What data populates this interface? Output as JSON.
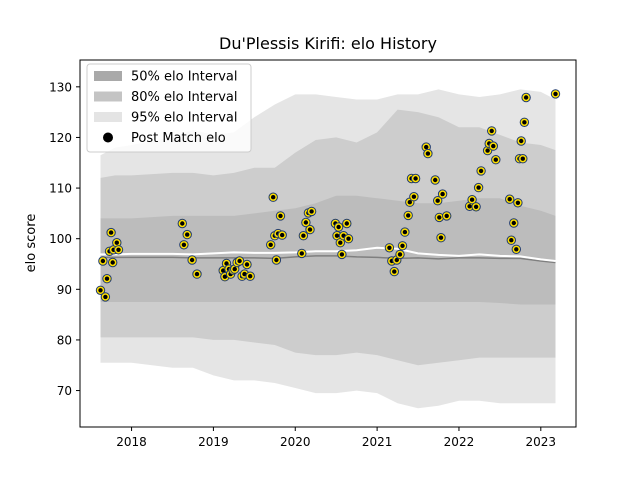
{
  "chart_data": {
    "type": "scatter",
    "title": "Du'Plessis Kirifi: elo History",
    "xlabel": "",
    "ylabel": "elo score",
    "xlim": [
      2017.37,
      2023.43
    ],
    "ylim": [
      62.8,
      135.3
    ],
    "x_ticks": [
      {
        "label": "2018",
        "value": 2018
      },
      {
        "label": "2019",
        "value": 2019
      },
      {
        "label": "2020",
        "value": 2020
      },
      {
        "label": "2021",
        "value": 2021
      },
      {
        "label": "2022",
        "value": 2022
      },
      {
        "label": "2023",
        "value": 2023
      }
    ],
    "y_ticks": [
      70,
      80,
      90,
      100,
      110,
      120,
      130
    ],
    "legend": {
      "location": "upper left",
      "items": [
        {
          "label": "50% elo Interval",
          "kind": "patch",
          "color": "#a9a9a9"
        },
        {
          "label": "80% elo Interval",
          "kind": "patch",
          "color": "#c4c4c4"
        },
        {
          "label": "95% elo Interval",
          "kind": "patch",
          "color": "#e4e4e4"
        },
        {
          "label": "Post Match elo",
          "kind": "marker",
          "color": "#000000"
        }
      ]
    },
    "colors": {
      "band_95": "#e5e5e5",
      "band_80": "#cdcdcd",
      "band_50": "#bcbcbc",
      "median_line": "#7f7f7f",
      "mean_line": "#ffffff",
      "point_fill": "#ffe000",
      "point_edge": "#1f3a6e",
      "point_center": "#000000"
    },
    "bands": {
      "x": [
        2017.62,
        2017.8,
        2018.0,
        2018.5,
        2018.75,
        2019.0,
        2019.25,
        2019.5,
        2019.75,
        2020.0,
        2020.25,
        2020.5,
        2020.75,
        2021.0,
        2021.25,
        2021.5,
        2021.75,
        2022.0,
        2022.25,
        2022.5,
        2022.75,
        2023.0,
        2023.18
      ],
      "p95_upper": [
        116.5,
        118,
        118.5,
        120,
        121.5,
        120.5,
        121,
        124,
        126.5,
        128.5,
        128.5,
        128,
        127.5,
        127.5,
        128.5,
        128.5,
        129.5,
        128.5,
        128,
        128.5,
        129.5,
        129,
        127.5
      ],
      "p80_upper": [
        112,
        112.5,
        112.5,
        113,
        113,
        112.5,
        113,
        114,
        114,
        117,
        119.5,
        120,
        119,
        121,
        125.5,
        125,
        124,
        122,
        122,
        120.5,
        119,
        118.5,
        117.5
      ],
      "p50_upper": [
        104,
        104,
        104,
        104.5,
        104.5,
        104.5,
        104.5,
        105,
        105.5,
        106,
        107,
        108.5,
        108.5,
        108,
        107.5,
        107,
        107,
        107.5,
        108,
        108,
        106.5,
        105.5,
        104.5
      ],
      "median": [
        96.3,
        96.3,
        96.3,
        96.3,
        96.2,
        96.2,
        96.2,
        96.2,
        96.1,
        96.4,
        96.6,
        96.6,
        96.4,
        96.3,
        96.1,
        96.2,
        96.0,
        96.2,
        96.2,
        96.1,
        96.1,
        95.6,
        95.3
      ],
      "mean": [
        96.9,
        96.9,
        97.0,
        97.0,
        96.9,
        97.1,
        97.3,
        97.2,
        97.2,
        97.3,
        97.5,
        97.5,
        97.7,
        98.2,
        98.0,
        97.1,
        96.8,
        96.6,
        96.9,
        96.6,
        96.5,
        95.9,
        95.6
      ],
      "p50_lower": [
        87.5,
        87.5,
        87.5,
        87.5,
        87.5,
        87.5,
        87.5,
        87.5,
        87.5,
        87.5,
        87.5,
        87.5,
        87.5,
        87.5,
        87.5,
        87.5,
        87.5,
        87.5,
        87.5,
        87.3,
        87.0,
        87.0,
        87.0
      ],
      "p80_lower": [
        80.5,
        80.5,
        80.5,
        80.5,
        80.5,
        80,
        80,
        79.5,
        79,
        77.5,
        77,
        77,
        77.5,
        77,
        76,
        75,
        75.5,
        76,
        76.5,
        76.5,
        76.5,
        76.5,
        76.5
      ],
      "p95_lower": [
        75.5,
        75.5,
        75.5,
        74.5,
        74.5,
        73,
        72,
        72,
        71.5,
        70.5,
        69.5,
        69.5,
        70,
        69.5,
        67.5,
        66.5,
        67,
        68,
        68,
        67.5,
        67.5,
        67.5,
        67.5
      ]
    },
    "points": [
      [
        2017.62,
        89.8
      ],
      [
        2017.65,
        95.6
      ],
      [
        2017.68,
        88.5
      ],
      [
        2017.7,
        92.1
      ],
      [
        2017.73,
        97.5
      ],
      [
        2017.75,
        101.2
      ],
      [
        2017.77,
        95.3
      ],
      [
        2017.78,
        97.8
      ],
      [
        2017.82,
        99.2
      ],
      [
        2017.84,
        97.8
      ],
      [
        2018.62,
        103.0
      ],
      [
        2018.64,
        98.8
      ],
      [
        2018.68,
        100.8
      ],
      [
        2018.74,
        95.8
      ],
      [
        2018.8,
        93.0
      ],
      [
        2019.12,
        93.7
      ],
      [
        2019.14,
        92.5
      ],
      [
        2019.16,
        95.1
      ],
      [
        2019.19,
        94.0
      ],
      [
        2019.21,
        93.0
      ],
      [
        2019.24,
        93.8
      ],
      [
        2019.26,
        94.0
      ],
      [
        2019.29,
        95.3
      ],
      [
        2019.32,
        95.6
      ],
      [
        2019.35,
        92.6
      ],
      [
        2019.38,
        93.0
      ],
      [
        2019.41,
        94.9
      ],
      [
        2019.45,
        92.6
      ],
      [
        2019.7,
        98.8
      ],
      [
        2019.73,
        108.2
      ],
      [
        2019.75,
        100.6
      ],
      [
        2019.77,
        95.8
      ],
      [
        2019.79,
        101.0
      ],
      [
        2019.82,
        104.5
      ],
      [
        2019.84,
        100.7
      ],
      [
        2020.08,
        97.1
      ],
      [
        2020.1,
        100.6
      ],
      [
        2020.13,
        103.2
      ],
      [
        2020.16,
        105.1
      ],
      [
        2020.18,
        101.8
      ],
      [
        2020.2,
        105.4
      ],
      [
        2020.49,
        103.0
      ],
      [
        2020.51,
        100.6
      ],
      [
        2020.53,
        102.3
      ],
      [
        2020.55,
        99.2
      ],
      [
        2020.57,
        96.9
      ],
      [
        2020.59,
        100.6
      ],
      [
        2020.63,
        103.0
      ],
      [
        2020.65,
        100.0
      ],
      [
        2021.15,
        98.2
      ],
      [
        2021.18,
        95.6
      ],
      [
        2021.21,
        93.5
      ],
      [
        2021.24,
        95.8
      ],
      [
        2021.28,
        96.9
      ],
      [
        2021.31,
        98.6
      ],
      [
        2021.34,
        101.3
      ],
      [
        2021.38,
        104.6
      ],
      [
        2021.4,
        107.2
      ],
      [
        2021.42,
        111.9
      ],
      [
        2021.45,
        108.3
      ],
      [
        2021.47,
        111.9
      ],
      [
        2021.6,
        118.1
      ],
      [
        2021.62,
        116.8
      ],
      [
        2021.71,
        111.6
      ],
      [
        2021.74,
        107.5
      ],
      [
        2021.76,
        104.2
      ],
      [
        2021.78,
        100.2
      ],
      [
        2021.8,
        108.8
      ],
      [
        2021.85,
        104.5
      ],
      [
        2022.13,
        106.4
      ],
      [
        2022.16,
        107.7
      ],
      [
        2022.21,
        106.3
      ],
      [
        2022.24,
        110.1
      ],
      [
        2022.27,
        113.4
      ],
      [
        2022.35,
        117.4
      ],
      [
        2022.37,
        118.8
      ],
      [
        2022.4,
        121.3
      ],
      [
        2022.42,
        118.3
      ],
      [
        2022.45,
        115.6
      ],
      [
        2022.62,
        107.8
      ],
      [
        2022.64,
        99.7
      ],
      [
        2022.67,
        103.1
      ],
      [
        2022.7,
        97.9
      ],
      [
        2022.72,
        107.1
      ],
      [
        2022.74,
        115.8
      ],
      [
        2022.76,
        119.3
      ],
      [
        2022.78,
        115.8
      ],
      [
        2022.8,
        123.0
      ],
      [
        2022.82,
        127.9
      ],
      [
        2023.18,
        128.6
      ]
    ]
  }
}
